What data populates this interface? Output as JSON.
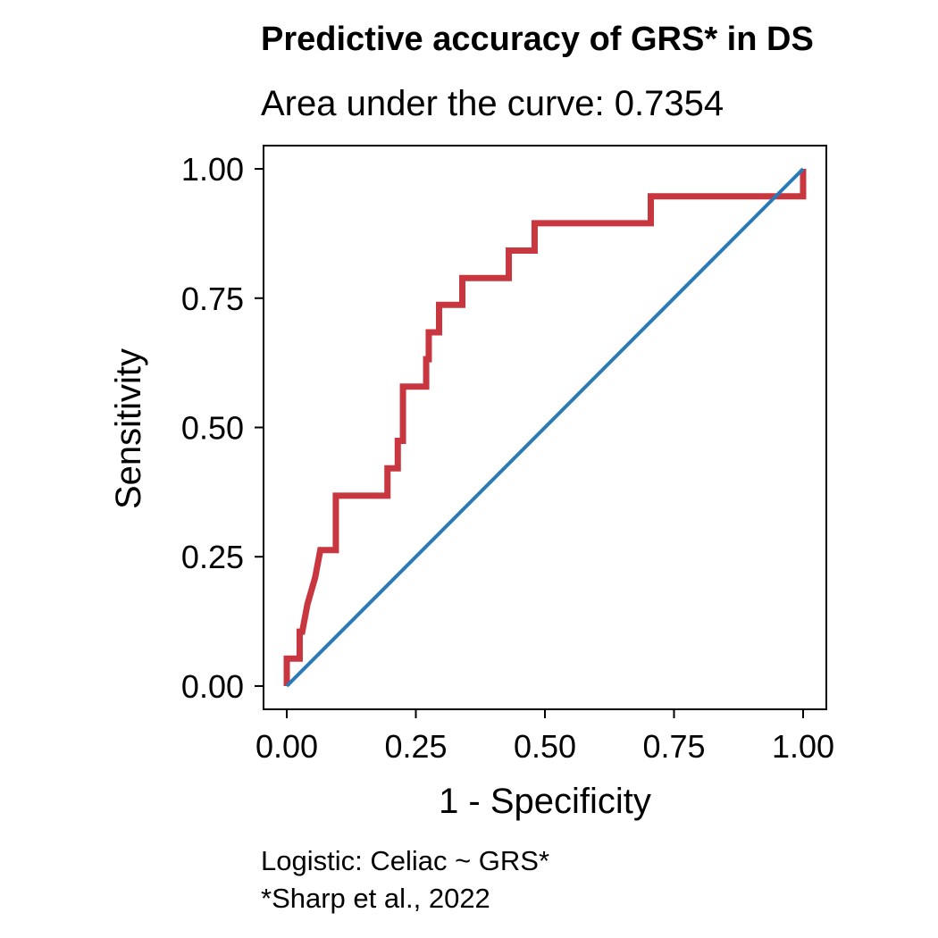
{
  "chart_data": {
    "type": "line",
    "title": "Predictive accuracy of GRS* in DS",
    "subtitle": "Area under the curve: 0.7354",
    "xlabel": "1 - Specificity",
    "ylabel": "Sensitivity",
    "caption_lines": [
      "Logistic: Celiac ~ GRS*",
      "*Sharp et al., 2022"
    ],
    "xlim": [
      -0.045,
      1.045
    ],
    "ylim": [
      -0.045,
      1.045
    ],
    "x_ticks": [
      0,
      0.25,
      0.5,
      0.75,
      1
    ],
    "y_ticks": [
      0,
      0.25,
      0.5,
      0.75,
      1
    ],
    "x_tick_labels": [
      "0.00",
      "0.25",
      "0.50",
      "0.75",
      "1.00"
    ],
    "y_tick_labels": [
      "0.00",
      "0.25",
      "0.50",
      "0.75",
      "1.00"
    ],
    "grid": false,
    "legend": "none",
    "series": [
      {
        "color": "#c8373f",
        "x": [
          0,
          0,
          0.005,
          0.005,
          0.025,
          0.025,
          0.03,
          0.03,
          0.04,
          0.04,
          0.055,
          0.055,
          0.065,
          0.065,
          0.095,
          0.095,
          0.195,
          0.195,
          0.215,
          0.215,
          0.225,
          0.225,
          0.27,
          0.27,
          0.275,
          0.275,
          0.295,
          0.295,
          0.34,
          0.34,
          0.43,
          0.43,
          0.48,
          0.48,
          0.705,
          0.705,
          1,
          1
        ],
        "y": [
          0,
          0.053,
          0.053,
          0.053,
          0.053,
          0.105,
          0.105,
          0.105,
          0.158,
          0.158,
          0.21,
          0.21,
          0.263,
          0.263,
          0.263,
          0.368,
          0.368,
          0.421,
          0.421,
          0.474,
          0.474,
          0.579,
          0.579,
          0.632,
          0.632,
          0.684,
          0.684,
          0.737,
          0.737,
          0.789,
          0.789,
          0.842,
          0.842,
          0.895,
          0.895,
          0.947,
          0.947,
          1
        ]
      },
      {
        "color": "#2a7ab8",
        "x": [
          0,
          1
        ],
        "y": [
          0,
          1
        ]
      }
    ]
  }
}
